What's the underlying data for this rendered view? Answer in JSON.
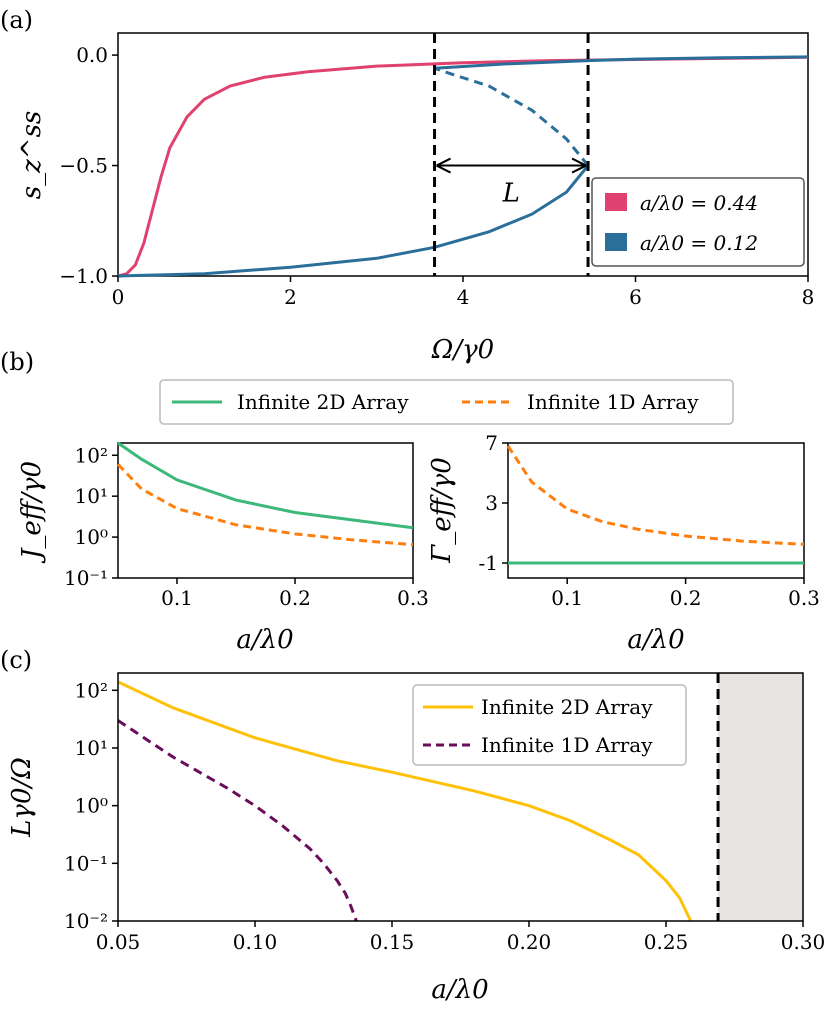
{
  "chart_data": [
    {
      "id": "a",
      "panel_label": "(a)",
      "type": "line",
      "xlabel": "Ω/γ0",
      "ylabel": "s_z^ss",
      "xlim": [
        0,
        8
      ],
      "ylim": [
        -1.0,
        0.1
      ],
      "xticks": [
        "0",
        "2",
        "4",
        "6",
        "8"
      ],
      "yticks": [
        "0.0",
        "−0.5",
        "−1.0"
      ],
      "vlines": [
        3.67,
        5.45
      ],
      "arrow": {
        "from": 3.67,
        "to": 5.45,
        "y": -0.5,
        "label": "L"
      },
      "legend": [
        "a/λ0 = 0.44",
        "a/λ0 = 0.12"
      ],
      "colors": {
        "pink": "#e0416e",
        "blue": "#2a6f99"
      },
      "series": [
        {
          "name": "a/λ0 = 0.44",
          "color": "#e0416e",
          "x": [
            0,
            0.1,
            0.2,
            0.3,
            0.4,
            0.5,
            0.6,
            0.8,
            1.0,
            1.3,
            1.7,
            2.2,
            3.0,
            4.0,
            5.0,
            6.0,
            8.0
          ],
          "y": [
            -1.0,
            -0.99,
            -0.95,
            -0.85,
            -0.7,
            -0.55,
            -0.42,
            -0.28,
            -0.2,
            -0.14,
            -0.1,
            -0.075,
            -0.05,
            -0.035,
            -0.025,
            -0.02,
            -0.01
          ]
        },
        {
          "name": "a/λ0 = 0.12 (lower stable)",
          "color": "#2a6f99",
          "x": [
            0,
            1.0,
            2.0,
            3.0,
            3.67,
            4.3,
            4.8,
            5.2,
            5.45
          ],
          "y": [
            -1.0,
            -0.99,
            -0.96,
            -0.92,
            -0.87,
            -0.8,
            -0.72,
            -0.62,
            -0.5
          ]
        },
        {
          "name": "a/λ0 = 0.12 (unstable)",
          "color": "#2a6f99",
          "dashed": true,
          "x": [
            5.45,
            5.2,
            4.8,
            4.3,
            3.9,
            3.67
          ],
          "y": [
            -0.5,
            -0.38,
            -0.25,
            -0.14,
            -0.09,
            -0.06
          ]
        },
        {
          "name": "a/λ0 = 0.12 (upper stable)",
          "color": "#2a6f99",
          "x": [
            3.67,
            4.5,
            5.45,
            6.0,
            7.0,
            8.0
          ],
          "y": [
            -0.06,
            -0.04,
            -0.025,
            -0.018,
            -0.012,
            -0.008
          ]
        }
      ]
    },
    {
      "id": "b_legend",
      "panel_label": "(b)",
      "legend": [
        "Infinite 2D Array",
        "Infinite 1D Array"
      ],
      "colors": {
        "green": "#3cb878",
        "orange": "#ff7f0e"
      }
    },
    {
      "id": "b_left",
      "type": "line",
      "xlabel": "a/λ0",
      "ylabel": "J_eff/γ0",
      "yscale": "log",
      "xlim": [
        0.05,
        0.3
      ],
      "ylim_log": [
        -1,
        2.3
      ],
      "xticks": [
        "0.1",
        "0.2",
        "0.3"
      ],
      "yticks": [
        "10²",
        "10¹",
        "10⁰",
        "10⁻¹"
      ],
      "series": [
        {
          "name": "Infinite 2D Array",
          "color": "#3cb878",
          "x": [
            0.05,
            0.07,
            0.1,
            0.15,
            0.2,
            0.25,
            0.3
          ],
          "y": [
            200,
            80,
            25,
            8,
            4,
            2.6,
            1.7
          ]
        },
        {
          "name": "Infinite 1D Array",
          "color": "#ff7f0e",
          "dashed": true,
          "x": [
            0.05,
            0.07,
            0.1,
            0.15,
            0.2,
            0.25,
            0.3
          ],
          "y": [
            60,
            15,
            5,
            2,
            1.2,
            0.85,
            0.65
          ]
        }
      ]
    },
    {
      "id": "b_right",
      "type": "line",
      "xlabel": "a/λ0",
      "ylabel": "Γ_eff/γ0",
      "xlim": [
        0.05,
        0.3
      ],
      "ylim": [
        -2,
        7
      ],
      "xticks": [
        "0.1",
        "0.2",
        "0.3"
      ],
      "yticks": [
        "7",
        "3",
        "-1"
      ],
      "series": [
        {
          "name": "Infinite 2D Array",
          "color": "#3cb878",
          "x": [
            0.05,
            0.3
          ],
          "y": [
            -1,
            -1
          ]
        },
        {
          "name": "Infinite 1D Array",
          "color": "#ff7f0e",
          "dashed": true,
          "x": [
            0.05,
            0.07,
            0.1,
            0.13,
            0.16,
            0.2,
            0.25,
            0.3
          ],
          "y": [
            6.8,
            4.4,
            2.6,
            1.75,
            1.25,
            0.8,
            0.45,
            0.25
          ]
        }
      ]
    },
    {
      "id": "c",
      "panel_label": "(c)",
      "type": "line",
      "xlabel": "a/λ0",
      "ylabel": "Lγ0/Ω",
      "yscale": "log",
      "xlim": [
        0.05,
        0.3
      ],
      "ylim_log": [
        -2,
        2.3
      ],
      "xticks": [
        "0.05",
        "0.10",
        "0.15",
        "0.20",
        "0.25",
        "0.30"
      ],
      "yticks": [
        "10²",
        "10¹",
        "10⁰",
        "10⁻¹",
        "10⁻²"
      ],
      "vline": 0.269,
      "shade": [
        0.269,
        0.3
      ],
      "legend": [
        "Infinite 2D Array",
        "Infinite 1D Array"
      ],
      "colors": {
        "gold": "#ffc107",
        "purple": "#6a0d5a",
        "shade": "#e8e4e2"
      },
      "series": [
        {
          "name": "Infinite 2D Array",
          "color": "#ffc107",
          "x": [
            0.05,
            0.07,
            0.1,
            0.13,
            0.15,
            0.18,
            0.2,
            0.215,
            0.23,
            0.24,
            0.25,
            0.255,
            0.259
          ],
          "y": [
            140,
            50,
            15,
            6,
            3.8,
            1.8,
            1.0,
            0.55,
            0.25,
            0.14,
            0.05,
            0.025,
            0.01
          ]
        },
        {
          "name": "Infinite 1D Array",
          "color": "#6a0d5a",
          "dashed": true,
          "x": [
            0.05,
            0.07,
            0.09,
            0.1,
            0.11,
            0.12,
            0.125,
            0.13,
            0.133,
            0.135,
            0.137
          ],
          "y": [
            30,
            7,
            2,
            1.0,
            0.45,
            0.18,
            0.1,
            0.05,
            0.03,
            0.018,
            0.01
          ]
        }
      ]
    }
  ]
}
